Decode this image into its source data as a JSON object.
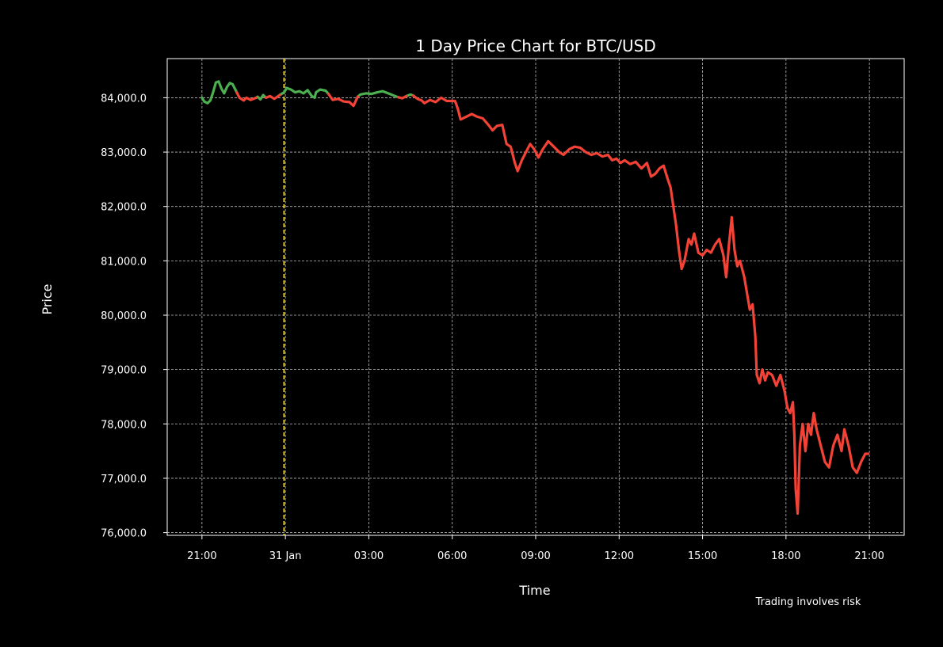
{
  "chart_data": {
    "type": "line",
    "title": "1 Day Price Chart for BTC/USD",
    "xlabel": "Time",
    "ylabel": "Price",
    "note": "Trading involves risk",
    "x_ticks": [
      {
        "label": "21:00",
        "hour": 0
      },
      {
        "label": "31 Jan",
        "hour": 3
      },
      {
        "label": "03:00",
        "hour": 6
      },
      {
        "label": "06:00",
        "hour": 9
      },
      {
        "label": "09:00",
        "hour": 12
      },
      {
        "label": "12:00",
        "hour": 15
      },
      {
        "label": "15:00",
        "hour": 18
      },
      {
        "label": "18:00",
        "hour": 21
      },
      {
        "label": "21:00",
        "hour": 24
      }
    ],
    "y_ticks": [
      "76,000.0",
      "77,000.0",
      "78,000.0",
      "79,000.0",
      "80,000.0",
      "81,000.0",
      "82,000.0",
      "83,000.0",
      "84,000.0"
    ],
    "xlim": [
      -1.25,
      25.25
    ],
    "ylim": [
      75950,
      84720
    ],
    "grid": true,
    "colors": {
      "up": "#4caf50",
      "down": "#f44336",
      "marker": "#ffeb3b",
      "background": "#000000"
    },
    "day_marker_hour": 2.95,
    "series": [
      {
        "color_key": "up",
        "segments": [
          [
            [
              0.0,
              84000
            ],
            [
              0.08,
              83930
            ],
            [
              0.2,
              83900
            ],
            [
              0.3,
              83950
            ],
            [
              0.4,
              84100
            ],
            [
              0.5,
              84280
            ],
            [
              0.6,
              84300
            ],
            [
              0.7,
              84170
            ],
            [
              0.8,
              84080
            ],
            [
              0.9,
              84200
            ],
            [
              1.0,
              84270
            ],
            [
              1.1,
              84250
            ],
            [
              1.2,
              84150
            ],
            [
              1.25,
              84100
            ]
          ],
          [
            [
              1.95,
              84000
            ],
            [
              2.0,
              84020
            ],
            [
              2.1,
              83970
            ],
            [
              2.2,
              84050
            ],
            [
              2.3,
              84000
            ]
          ],
          [
            [
              2.8,
              84050
            ],
            [
              2.95,
              84100
            ],
            [
              3.05,
              84180
            ],
            [
              3.2,
              84150
            ],
            [
              3.35,
              84100
            ],
            [
              3.5,
              84120
            ],
            [
              3.65,
              84080
            ],
            [
              3.8,
              84140
            ],
            [
              3.95,
              84030
            ],
            [
              4.05,
              84000
            ],
            [
              4.1,
              84100
            ],
            [
              4.25,
              84150
            ],
            [
              4.45,
              84130
            ],
            [
              4.55,
              84070
            ]
          ],
          [
            [
              5.6,
              84020
            ],
            [
              5.7,
              84060
            ],
            [
              5.9,
              84080
            ],
            [
              6.1,
              84070
            ],
            [
              6.3,
              84100
            ],
            [
              6.5,
              84120
            ],
            [
              6.7,
              84080
            ],
            [
              6.9,
              84040
            ],
            [
              7.05,
              84010
            ]
          ],
          [
            [
              7.35,
              84030
            ],
            [
              7.5,
              84060
            ],
            [
              7.6,
              84040
            ]
          ]
        ]
      },
      {
        "color_key": "down",
        "segments": [
          [
            [
              1.25,
              84100
            ],
            [
              1.35,
              84000
            ],
            [
              1.5,
              83950
            ],
            [
              1.6,
              84000
            ],
            [
              1.75,
              83960
            ],
            [
              1.95,
              84000
            ]
          ],
          [
            [
              2.3,
              84000
            ],
            [
              2.45,
              84030
            ],
            [
              2.6,
              83980
            ],
            [
              2.8,
              84050
            ]
          ],
          [
            [
              4.55,
              84070
            ],
            [
              4.7,
              83960
            ],
            [
              4.9,
              83980
            ],
            [
              5.1,
              83930
            ],
            [
              5.3,
              83920
            ],
            [
              5.45,
              83850
            ],
            [
              5.6,
              84020
            ]
          ],
          [
            [
              7.05,
              84010
            ],
            [
              7.2,
              83990
            ],
            [
              7.35,
              84030
            ]
          ],
          [
            [
              7.6,
              84040
            ],
            [
              7.75,
              83980
            ],
            [
              7.9,
              83950
            ],
            [
              8.0,
              83900
            ],
            [
              8.2,
              83960
            ],
            [
              8.4,
              83920
            ],
            [
              8.6,
              84000
            ],
            [
              8.8,
              83940
            ],
            [
              9.0,
              83940
            ],
            [
              9.1,
              83940
            ],
            [
              9.2,
              83800
            ],
            [
              9.3,
              83600
            ],
            [
              9.5,
              83650
            ],
            [
              9.7,
              83700
            ],
            [
              9.9,
              83650
            ],
            [
              10.1,
              83620
            ],
            [
              10.3,
              83500
            ],
            [
              10.45,
              83400
            ],
            [
              10.6,
              83480
            ],
            [
              10.8,
              83500
            ],
            [
              10.95,
              83150
            ],
            [
              11.1,
              83100
            ],
            [
              11.25,
              82800
            ],
            [
              11.35,
              82650
            ],
            [
              11.5,
              82850
            ],
            [
              11.65,
              83000
            ],
            [
              11.8,
              83150
            ],
            [
              11.95,
              83050
            ],
            [
              12.1,
              82900
            ],
            [
              12.25,
              83050
            ],
            [
              12.45,
              83200
            ],
            [
              12.65,
              83100
            ],
            [
              12.85,
              83000
            ],
            [
              13.0,
              82950
            ],
            [
              13.2,
              83050
            ],
            [
              13.4,
              83100
            ],
            [
              13.6,
              83080
            ],
            [
              13.8,
              83000
            ],
            [
              14.0,
              82950
            ],
            [
              14.2,
              82980
            ],
            [
              14.4,
              82920
            ],
            [
              14.6,
              82950
            ],
            [
              14.75,
              82850
            ],
            [
              14.9,
              82880
            ],
            [
              15.05,
              82800
            ],
            [
              15.2,
              82850
            ],
            [
              15.4,
              82780
            ],
            [
              15.6,
              82820
            ],
            [
              15.8,
              82700
            ],
            [
              16.0,
              82800
            ],
            [
              16.15,
              82550
            ],
            [
              16.3,
              82600
            ],
            [
              16.45,
              82700
            ],
            [
              16.6,
              82750
            ],
            [
              16.75,
              82500
            ],
            [
              16.85,
              82350
            ],
            [
              16.95,
              82000
            ],
            [
              17.05,
              81650
            ],
            [
              17.15,
              81200
            ],
            [
              17.25,
              80850
            ],
            [
              17.35,
              81000
            ],
            [
              17.5,
              81400
            ],
            [
              17.6,
              81300
            ],
            [
              17.7,
              81500
            ],
            [
              17.85,
              81150
            ],
            [
              18.0,
              81100
            ],
            [
              18.15,
              81200
            ],
            [
              18.3,
              81150
            ],
            [
              18.45,
              81300
            ],
            [
              18.6,
              81400
            ],
            [
              18.75,
              81100
            ],
            [
              18.85,
              80700
            ],
            [
              18.95,
              81300
            ],
            [
              19.05,
              81800
            ],
            [
              19.15,
              81200
            ],
            [
              19.25,
              80900
            ],
            [
              19.35,
              81000
            ],
            [
              19.5,
              80700
            ],
            [
              19.6,
              80400
            ],
            [
              19.7,
              80100
            ],
            [
              19.8,
              80200
            ],
            [
              19.9,
              79600
            ],
            [
              19.95,
              78900
            ],
            [
              20.05,
              78750
            ],
            [
              20.15,
              79000
            ],
            [
              20.25,
              78800
            ],
            [
              20.35,
              78950
            ],
            [
              20.5,
              78900
            ],
            [
              20.65,
              78700
            ],
            [
              20.8,
              78900
            ],
            [
              20.95,
              78600
            ],
            [
              21.05,
              78300
            ],
            [
              21.15,
              78200
            ],
            [
              21.25,
              78400
            ],
            [
              21.3,
              77800
            ],
            [
              21.35,
              76800
            ],
            [
              21.42,
              76350
            ],
            [
              21.5,
              77600
            ],
            [
              21.6,
              78000
            ],
            [
              21.7,
              77500
            ],
            [
              21.8,
              78000
            ],
            [
              21.9,
              77800
            ],
            [
              22.0,
              78200
            ],
            [
              22.1,
              77900
            ],
            [
              22.25,
              77600
            ],
            [
              22.4,
              77300
            ],
            [
              22.55,
              77200
            ],
            [
              22.7,
              77600
            ],
            [
              22.85,
              77800
            ],
            [
              23.0,
              77500
            ],
            [
              23.1,
              77900
            ],
            [
              23.25,
              77600
            ],
            [
              23.4,
              77200
            ],
            [
              23.55,
              77100
            ],
            [
              23.7,
              77300
            ],
            [
              23.85,
              77450
            ],
            [
              23.95,
              77450
            ]
          ]
        ]
      }
    ]
  }
}
